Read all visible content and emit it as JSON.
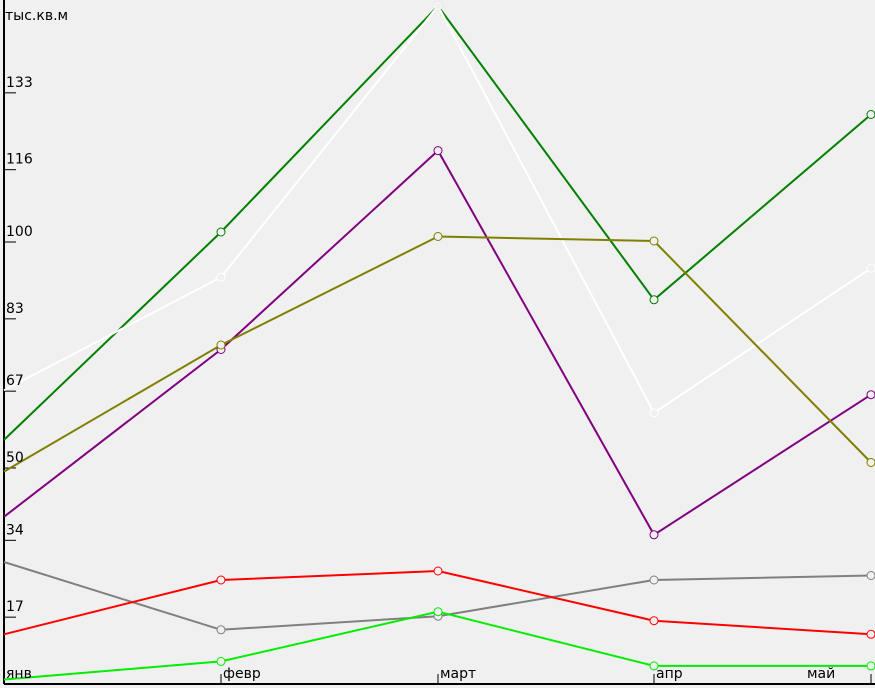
{
  "chart_data": {
    "type": "line",
    "ylabel": "тыс.кв.м",
    "categories": [
      "янв",
      "февр",
      "март",
      "апр",
      "май"
    ],
    "yticks": [
      17,
      34,
      50,
      67,
      83,
      100,
      116,
      133
    ],
    "ylim": [
      0,
      150
    ],
    "grid": false,
    "legend": "none",
    "series": [
      {
        "color": "#008000",
        "values": [
          54,
          100,
          150,
          85,
          126
        ]
      },
      {
        "color": "#ffffff",
        "values": [
          65,
          90,
          150,
          60,
          92
        ]
      },
      {
        "color": "#800080",
        "values": [
          37,
          74,
          118,
          33,
          64
        ]
      },
      {
        "color": "#808000",
        "values": [
          47,
          75,
          99,
          98,
          49
        ]
      },
      {
        "color": "#808080",
        "values": [
          27,
          12,
          15,
          23,
          24
        ]
      },
      {
        "color": "#ff0000",
        "values": [
          11,
          23,
          25,
          14,
          11
        ]
      },
      {
        "color": "#00ee00",
        "values": [
          1,
          5,
          16,
          4,
          4
        ]
      }
    ]
  }
}
